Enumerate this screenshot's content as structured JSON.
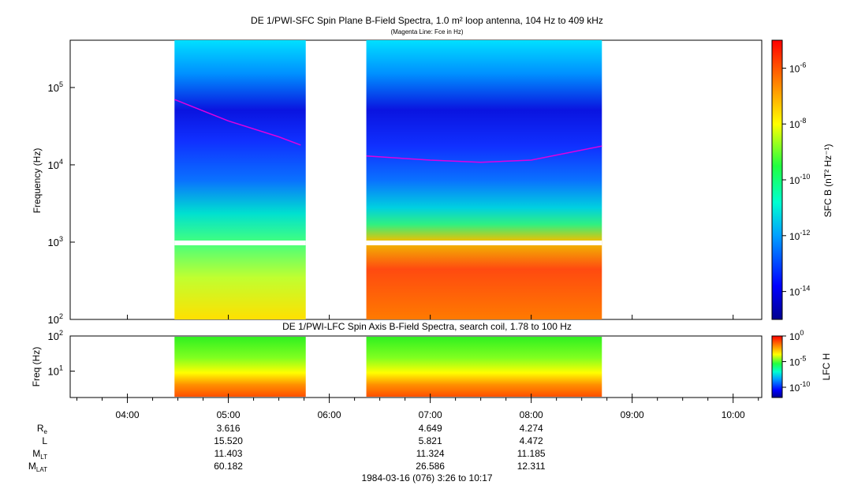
{
  "colors": {
    "low": "#0b0d8c",
    "mid": "#1ee6a6",
    "high": "#ff3a10",
    "fce_line": "#e000e0"
  },
  "chart_data": [
    {
      "type": "heatmap",
      "title": "DE 1/PWI-SFC  Spin Plane B-Field Spectra, 1.0 m² loop antenna, 104 Hz to 409 kHz",
      "subtitle": "(Magenta Line: Fce in Hz)",
      "ylabel": "Frequency (Hz)",
      "yscale": "log",
      "ylim": [
        100,
        409000
      ],
      "yticks": [
        {
          "value": 100,
          "base": "10",
          "exp": "2"
        },
        {
          "value": 1000,
          "base": "10",
          "exp": "3"
        },
        {
          "value": 10000,
          "base": "10",
          "exp": "4"
        },
        {
          "value": 100000,
          "base": "10",
          "exp": "5"
        }
      ],
      "data_intervals": [
        [
          "04:28",
          "05:46"
        ],
        [
          "06:22",
          "08:42"
        ]
      ],
      "colorbar": {
        "label": "SFC B (nT² Hz⁻¹)",
        "range": [
          1e-15,
          1e-05
        ],
        "ticks": [
          {
            "base": "10",
            "exp": "-6"
          },
          {
            "base": "10",
            "exp": "-8"
          },
          {
            "base": "10",
            "exp": "-10"
          },
          {
            "base": "10",
            "exp": "-12"
          },
          {
            "base": "10",
            "exp": "-14"
          }
        ]
      },
      "fce_line": {
        "name": "Fce",
        "segments": [
          {
            "times": [
              "04:28",
              "05:00",
              "05:30",
              "05:43"
            ],
            "values": [
              70000,
              37000,
              23000,
              18000
            ]
          },
          {
            "times": [
              "06:22",
              "07:00",
              "07:30",
              "08:00",
              "08:42"
            ],
            "values": [
              13000,
              11500,
              10800,
              11500,
              17500
            ]
          }
        ]
      }
    },
    {
      "type": "heatmap",
      "title": "DE 1/PWI-LFC  Spin Axis B-Field Spectra, search coil, 1.78 to 100 Hz",
      "ylabel": "Freq (Hz)",
      "yscale": "log",
      "ylim": [
        1.78,
        100
      ],
      "yticks": [
        {
          "value": 10,
          "base": "10",
          "exp": "1"
        },
        {
          "value": 100,
          "base": "10",
          "exp": "2"
        }
      ],
      "data_intervals": [
        [
          "04:28",
          "05:46"
        ],
        [
          "06:22",
          "08:42"
        ]
      ],
      "colorbar": {
        "label": "LFC H",
        "range": [
          1e-12,
          1
        ],
        "ticks": [
          {
            "base": "10",
            "exp": "0"
          },
          {
            "base": "10",
            "exp": "-5"
          },
          {
            "base": "10",
            "exp": "-10"
          }
        ]
      }
    }
  ],
  "time_axis": {
    "range": [
      "03:26",
      "10:17"
    ],
    "tick_labels": [
      "04:00",
      "05:00",
      "06:00",
      "07:00",
      "08:00",
      "09:00",
      "10:00"
    ]
  },
  "ephemeris": {
    "rows": [
      {
        "label": "R",
        "sub": "e",
        "values": [
          "3.616",
          "4.649",
          "4.274"
        ]
      },
      {
        "label": "L",
        "sub": "",
        "values": [
          "15.520",
          "5.821",
          "4.472"
        ]
      },
      {
        "label": "M",
        "sub": "LT",
        "values": [
          "11.403",
          "11.324",
          "11.185"
        ]
      },
      {
        "label": "M",
        "sub": "LAT",
        "values": [
          "60.182",
          "26.586",
          "12.311"
        ]
      }
    ],
    "columns": [
      "05:00",
      "07:00",
      "08:00"
    ]
  },
  "footer": {
    "date_text": "1984-03-16 (076) 3:26 to 10:17"
  }
}
